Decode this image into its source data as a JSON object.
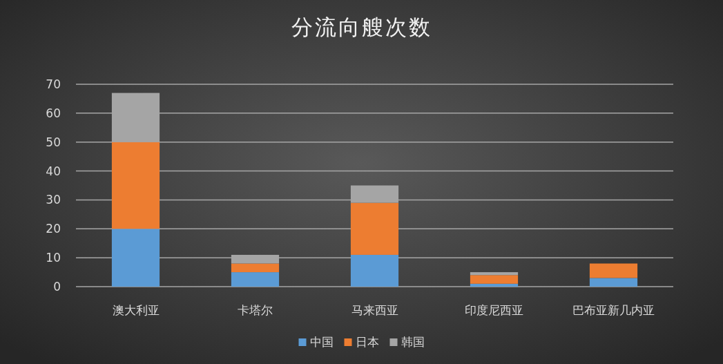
{
  "chart_data": {
    "type": "bar",
    "title": "分流向艘次数",
    "categories": [
      "澳大利亚",
      "卡塔尔",
      "马来西亚",
      "印度尼西亚",
      "巴布亚新几内亚"
    ],
    "series": [
      {
        "name": "中国",
        "color": "#5b9bd5",
        "values": [
          20,
          5,
          11,
          1,
          3
        ]
      },
      {
        "name": "日本",
        "color": "#ed7d31",
        "values": [
          30,
          3,
          18,
          3,
          5
        ]
      },
      {
        "name": "韩国",
        "color": "#a5a5a5",
        "values": [
          17,
          3,
          6,
          1,
          0
        ]
      }
    ],
    "stacked": true,
    "ylim": [
      0,
      70
    ],
    "yticks": [
      0,
      10,
      20,
      30,
      40,
      50,
      60,
      70
    ],
    "grid": "y",
    "legend": "bottom"
  }
}
